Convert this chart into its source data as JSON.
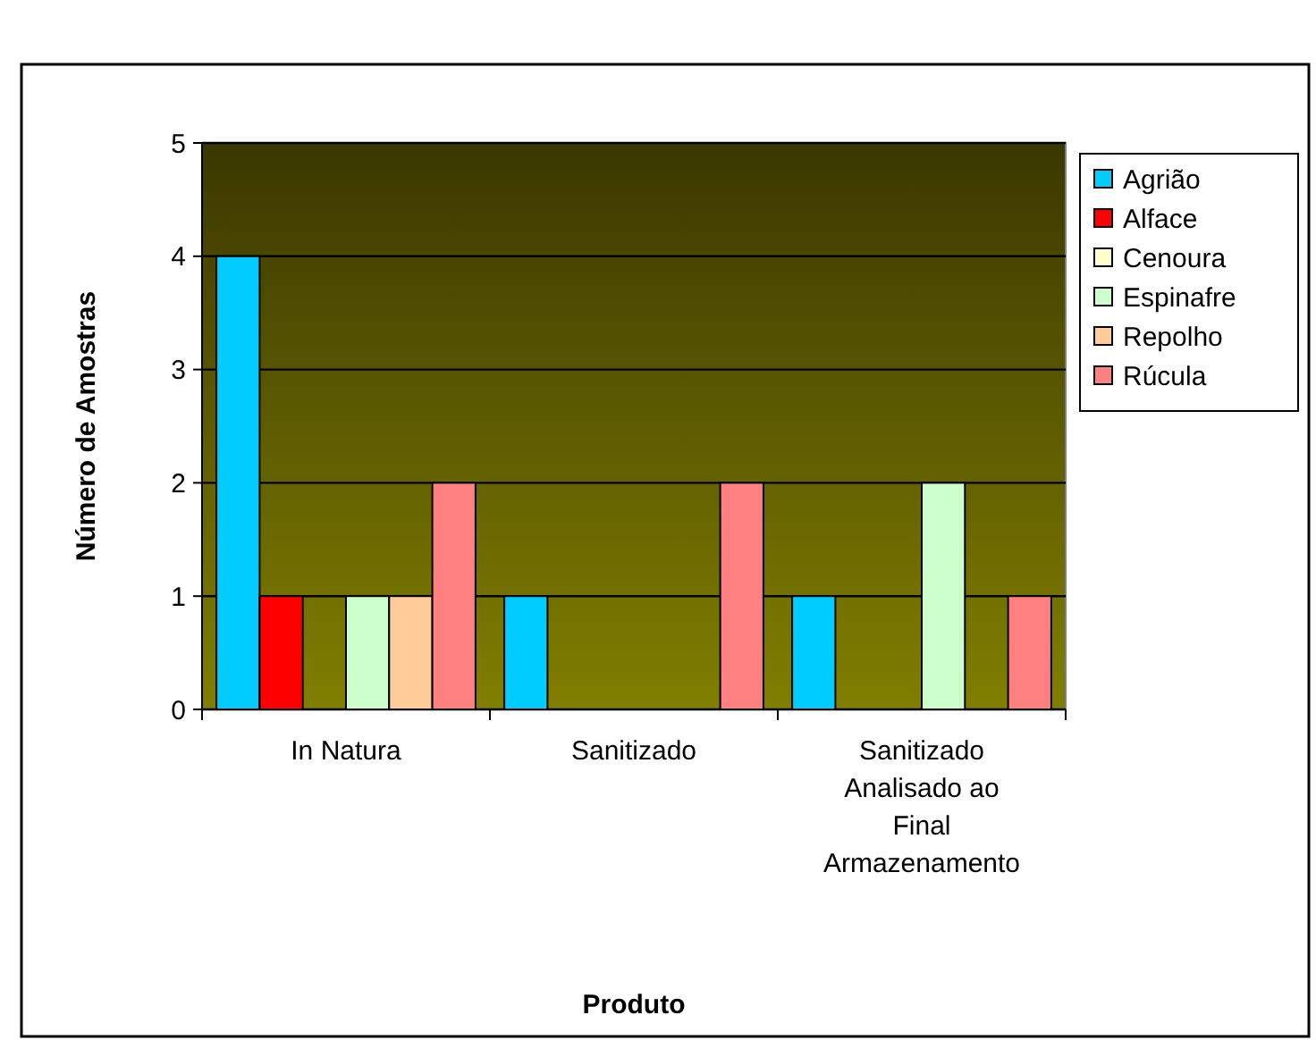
{
  "chart_data": {
    "type": "bar",
    "xlabel": "Produto",
    "ylabel": "Número de Amostras",
    "categories": [
      "In Natura",
      "Sanitizado",
      "Sanitizado Analisado ao Final Armazenamento"
    ],
    "series": [
      {
        "name": "Agrião",
        "color": "#00ccff",
        "values": [
          4,
          1,
          1
        ]
      },
      {
        "name": "Alface",
        "color": "#ff0000",
        "values": [
          1,
          0,
          0
        ]
      },
      {
        "name": "Cenoura",
        "color": "#ffffcc",
        "values": [
          0,
          0,
          0
        ]
      },
      {
        "name": "Espinafre",
        "color": "#ccffcc",
        "values": [
          1,
          0,
          2
        ]
      },
      {
        "name": "Repolho",
        "color": "#ffcc99",
        "values": [
          1,
          0,
          0
        ]
      },
      {
        "name": "Rúcula",
        "color": "#ff8080",
        "values": [
          2,
          2,
          1
        ]
      }
    ],
    "ylim": [
      0,
      5
    ],
    "yticks": [
      0,
      1,
      2,
      3,
      4,
      5
    ],
    "grid": "y",
    "legend": "right"
  }
}
